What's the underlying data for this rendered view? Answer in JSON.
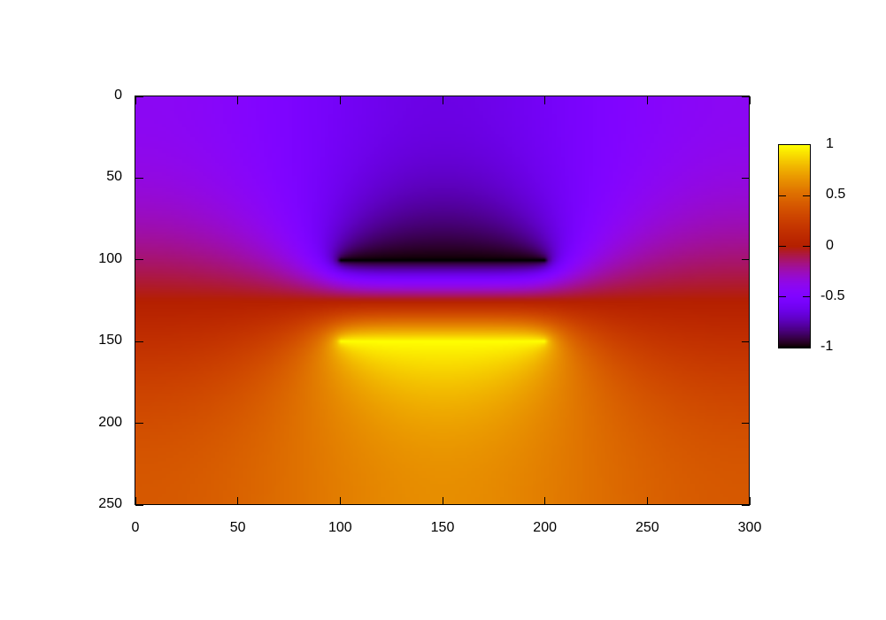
{
  "chart_data": {
    "type": "heatmap",
    "title": "",
    "xlabel": "",
    "ylabel": "",
    "xlim": [
      0,
      300
    ],
    "ylim": [
      250,
      0
    ],
    "y_reversed": true,
    "xticks": [
      "0",
      "50",
      "100",
      "150",
      "200",
      "250",
      "300"
    ],
    "xtick_values": [
      0,
      50,
      100,
      150,
      200,
      250,
      300
    ],
    "yticks": [
      "0",
      "50",
      "100",
      "150",
      "200",
      "250"
    ],
    "ytick_values": [
      0,
      50,
      100,
      150,
      200,
      250
    ],
    "colorbar": {
      "range": [
        -1,
        1
      ],
      "ticks": [
        "1",
        "0.5",
        "0",
        "-0.5",
        "-1"
      ],
      "tick_values": [
        1,
        0.5,
        0,
        -0.5,
        -1
      ],
      "palette": "black-purple-red-orange-yellow"
    },
    "field_sources": [
      {
        "x_range": [
          100,
          200
        ],
        "y": 100,
        "value": -1
      },
      {
        "x_range": [
          100,
          200
        ],
        "y": 150,
        "value": 1
      }
    ],
    "grid": false,
    "legend": "none"
  }
}
